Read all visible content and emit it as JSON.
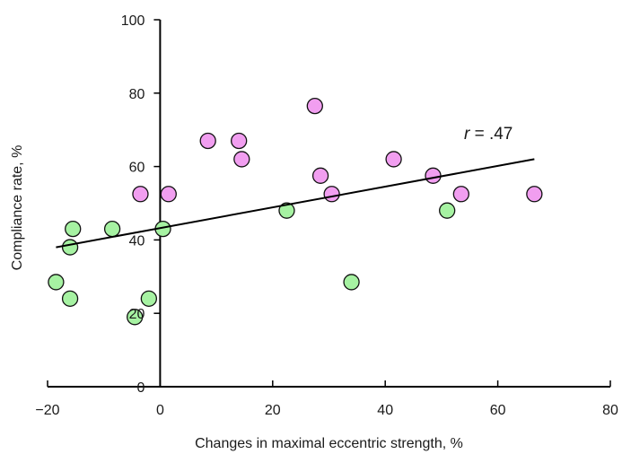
{
  "chart_data": {
    "type": "scatter",
    "xlabel": "Changes in maximal eccentric strength, %",
    "ylabel": "Compliance rate, %",
    "xlim": [
      -20,
      80
    ],
    "ylim": [
      0,
      100
    ],
    "xticks": [
      -20,
      0,
      20,
      40,
      60,
      80
    ],
    "yticks": [
      0,
      20,
      40,
      60,
      80,
      100
    ],
    "xtick_labels": [
      "−20",
      "0",
      "20",
      "40",
      "60",
      "80"
    ],
    "ytick_labels": [
      "0",
      "20",
      "40",
      "60",
      "80",
      "100"
    ],
    "grid": false,
    "colors": {
      "series_pink": "#f19ef0",
      "series_green": "#a6f2a2",
      "marker_edge": "#111111",
      "axis": "#000000"
    },
    "series": [
      {
        "color": "#f19ef0",
        "points": [
          {
            "x": -3.5,
            "y": 52.5
          },
          {
            "x": 1.5,
            "y": 52.5
          },
          {
            "x": 8.5,
            "y": 67
          },
          {
            "x": 14,
            "y": 67
          },
          {
            "x": 14.5,
            "y": 62
          },
          {
            "x": 27.5,
            "y": 76.5
          },
          {
            "x": 28.5,
            "y": 57.5
          },
          {
            "x": 30.5,
            "y": 52.5
          },
          {
            "x": 41.5,
            "y": 62
          },
          {
            "x": 48.5,
            "y": 57.5
          },
          {
            "x": 53.5,
            "y": 52.5
          },
          {
            "x": 66.5,
            "y": 52.5
          }
        ]
      },
      {
        "color": "#a6f2a2",
        "points": [
          {
            "x": -18.5,
            "y": 28.5
          },
          {
            "x": -16,
            "y": 38
          },
          {
            "x": -16,
            "y": 24
          },
          {
            "x": -15.5,
            "y": 43
          },
          {
            "x": -8.5,
            "y": 43
          },
          {
            "x": -4.5,
            "y": 19
          },
          {
            "x": -2,
            "y": 24
          },
          {
            "x": 0.5,
            "y": 43
          },
          {
            "x": 22.5,
            "y": 48
          },
          {
            "x": 34,
            "y": 28.5
          },
          {
            "x": 51,
            "y": 48
          }
        ]
      }
    ],
    "trendline": {
      "x": [
        -18.5,
        66.5
      ],
      "y": [
        38,
        62
      ]
    },
    "annotation": {
      "r_symbol": "r",
      "r_text": " = .47",
      "x": 54,
      "y": 69
    }
  }
}
